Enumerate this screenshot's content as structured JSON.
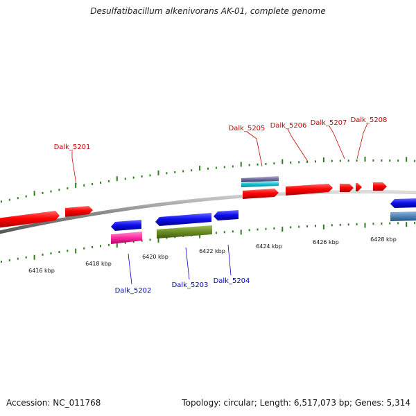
{
  "title": "Desulfatibacillum alkenivorans AK-01, complete genome",
  "footer": {
    "accession": "Accession: NC_011768",
    "summary": "Topology: circular; Length: 6,517,073 bp; Genes: 5,314"
  },
  "colors": {
    "forward_label": "#cc0000",
    "reverse_label": "#0000cc",
    "tick": "#2e7d1e",
    "backbone": "#888888"
  },
  "scale_labels": [
    "6416 kbp",
    "6418 kbp",
    "6420 kbp",
    "6422 kbp",
    "6424 kbp",
    "6426 kbp",
    "6428 kbp"
  ],
  "gene_labels": {
    "forward": [
      "Dalk_5201",
      "Dalk_5205",
      "Dalk_5206",
      "Dalk_5207",
      "Dalk_5208"
    ],
    "reverse": [
      "Dalk_5202",
      "Dalk_5203",
      "Dalk_5204"
    ]
  }
}
